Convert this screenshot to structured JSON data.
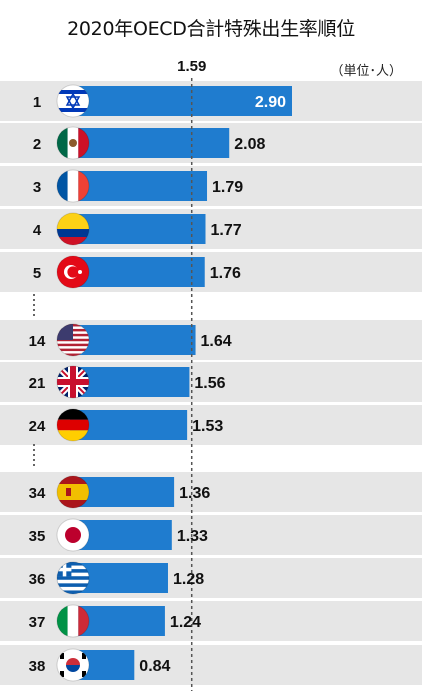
{
  "title": "2020年OECD合計特殊出生率順位",
  "unit": "（単位･人）",
  "reference_label": "1.59",
  "colors": {
    "bar": "#1f7ccf",
    "band": "#e6e6e6",
    "ref_line": "#555555",
    "label_text": "#111111",
    "top_value_text": "#ffffff"
  },
  "chart_data": {
    "type": "bar",
    "orientation": "horizontal",
    "title": "2020年OECD合計特殊出生率順位",
    "unit": "（単位･人）",
    "reference_line": 1.59,
    "rows": [
      {
        "rank": "1",
        "country": "Israel",
        "flag": "israel-flag-icon",
        "value": 2.9,
        "label": "2.90"
      },
      {
        "rank": "2",
        "country": "Mexico",
        "flag": "mexico-flag-icon",
        "value": 2.08,
        "label": "2.08"
      },
      {
        "rank": "3",
        "country": "France",
        "flag": "france-flag-icon",
        "value": 1.79,
        "label": "1.79"
      },
      {
        "rank": "4",
        "country": "Colombia",
        "flag": "colombia-flag-icon",
        "value": 1.77,
        "label": "1.77"
      },
      {
        "rank": "5",
        "country": "Turkey",
        "flag": "turkey-flag-icon",
        "value": 1.76,
        "label": "1.76"
      },
      {
        "rank": "14",
        "country": "USA",
        "flag": "usa-flag-icon",
        "value": 1.64,
        "label": "1.64"
      },
      {
        "rank": "21",
        "country": "UK",
        "flag": "uk-flag-icon",
        "value": 1.56,
        "label": "1.56"
      },
      {
        "rank": "24",
        "country": "Germany",
        "flag": "germany-flag-icon",
        "value": 1.53,
        "label": "1.53"
      },
      {
        "rank": "34",
        "country": "Spain",
        "flag": "spain-flag-icon",
        "value": 1.36,
        "label": "1.36"
      },
      {
        "rank": "35",
        "country": "Japan",
        "flag": "japan-flag-icon",
        "value": 1.33,
        "label": "1.33"
      },
      {
        "rank": "36",
        "country": "Greece",
        "flag": "greece-flag-icon",
        "value": 1.28,
        "label": "1.28"
      },
      {
        "rank": "37",
        "country": "Italy",
        "flag": "italy-flag-icon",
        "value": 1.24,
        "label": "1.24"
      },
      {
        "rank": "38",
        "country": "South Korea",
        "flag": "south-korea-flag-icon",
        "value": 0.84,
        "label": "0.84"
      }
    ]
  }
}
